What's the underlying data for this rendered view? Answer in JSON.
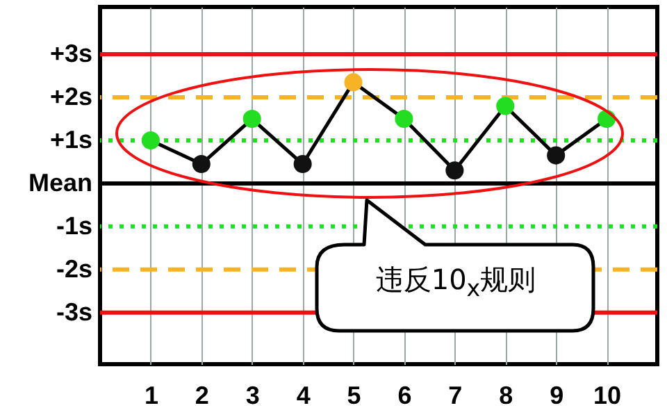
{
  "chart_data": {
    "type": "line",
    "x": [
      1,
      2,
      3,
      4,
      5,
      6,
      7,
      8,
      9,
      10
    ],
    "values": [
      1.0,
      0.45,
      1.5,
      0.45,
      2.35,
      1.5,
      0.3,
      1.8,
      0.65,
      1.5
    ],
    "color": "#000000",
    "colors": [
      "#22dd22",
      "#111111",
      "#22dd22",
      "#111111",
      "#f5b325",
      "#22dd22",
      "#111111",
      "#22dd22",
      "#111111",
      "#22dd22"
    ],
    "marker": "circle",
    "xlim": [
      0,
      11
    ],
    "xticks": [
      1,
      2,
      3,
      4,
      5,
      6,
      7,
      8,
      9,
      10
    ],
    "ylim": [
      -4.2,
      4.1
    ],
    "yticks": [
      {
        "value": 3,
        "label": "+3s"
      },
      {
        "value": 2,
        "label": "+2s"
      },
      {
        "value": 1,
        "label": "+1s"
      },
      {
        "value": 0,
        "label": "Mean"
      },
      {
        "value": -1,
        "label": "-1s"
      },
      {
        "value": -2,
        "label": "-2s"
      },
      {
        "value": -3,
        "label": "-3s"
      }
    ],
    "grid": "x",
    "ref_lines": [
      {
        "axis": "y",
        "value": 3,
        "color": "#ee1111",
        "line_style": "solid"
      },
      {
        "axis": "y",
        "value": 2,
        "color": "#f5b325",
        "line_style": "dashed"
      },
      {
        "axis": "y",
        "value": 1,
        "color": "#22dd22",
        "line_style": "dotted"
      },
      {
        "axis": "y",
        "value": 0,
        "color": "#000000",
        "line_style": "solid"
      },
      {
        "axis": "y",
        "value": -1,
        "color": "#22dd22",
        "line_style": "dotted"
      },
      {
        "axis": "y",
        "value": -2,
        "color": "#f5b325",
        "line_style": "dashed"
      },
      {
        "axis": "y",
        "value": -3,
        "color": "#ee1111",
        "line_style": "solid"
      }
    ],
    "annotations": [
      "违反10$_{x}$规则"
    ]
  }
}
